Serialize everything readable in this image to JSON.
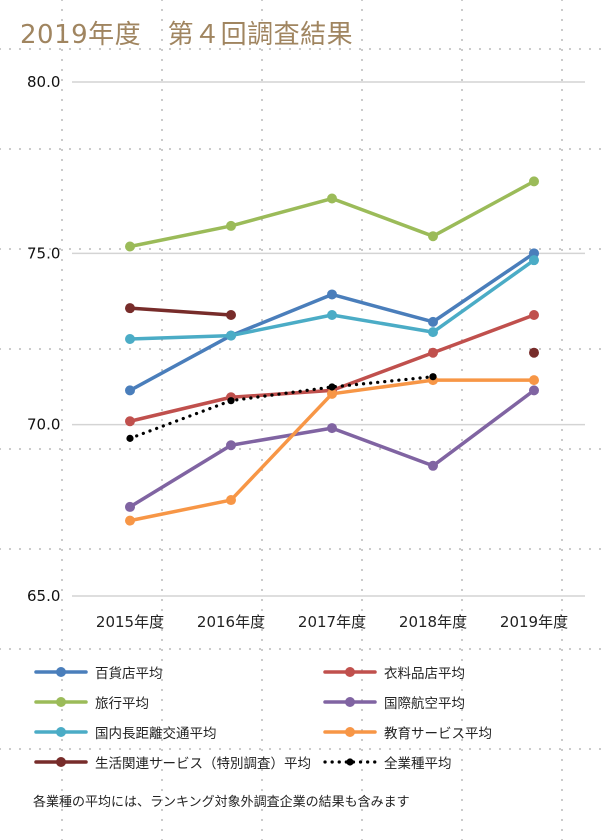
{
  "title": "2019年度　第４回調査結果",
  "footnote": "各業種の平均には、ランキング対象外調査企業の結果も含みます",
  "chart_data": {
    "type": "line",
    "title": "2019年度　第４回調査結果",
    "xlabel": "",
    "ylabel": "",
    "categories": [
      "2015年度",
      "2016年度",
      "2017年度",
      "2018年度",
      "2019年度"
    ],
    "ylim": [
      65.0,
      80.0
    ],
    "yticks": [
      "65.0",
      "70.0",
      "75.0",
      "80.0"
    ],
    "ytick_values": [
      65,
      70,
      75,
      80
    ],
    "grid": true,
    "legend_position": "bottom",
    "series": [
      {
        "name": "百貨店平均",
        "color": "#4a7ebb",
        "style": "solid",
        "values": [
          71.0,
          72.6,
          73.8,
          73.0,
          75.0
        ]
      },
      {
        "name": "衣料品店平均",
        "color": "#c0504d",
        "style": "solid",
        "values": [
          70.1,
          70.8,
          71.0,
          72.1,
          73.2
        ]
      },
      {
        "name": "旅行平均",
        "color": "#9bbb59",
        "style": "solid",
        "values": [
          75.2,
          75.8,
          76.6,
          75.5,
          77.1
        ]
      },
      {
        "name": "国際航空平均",
        "color": "#8064a2",
        "style": "solid",
        "values": [
          67.6,
          69.4,
          69.9,
          68.8,
          71.0
        ]
      },
      {
        "name": "国内長距離交通平均",
        "color": "#4bacc6",
        "style": "solid",
        "values": [
          72.5,
          72.6,
          73.2,
          72.7,
          74.8
        ]
      },
      {
        "name": "教育サービス平均",
        "color": "#f79646",
        "style": "solid",
        "values": [
          67.2,
          67.8,
          70.9,
          71.3,
          71.3
        ]
      },
      {
        "name": "生活関連サービス（特別調査）平均",
        "color": "#772c2a",
        "style": "solid",
        "values": [
          73.4,
          73.2,
          null,
          null,
          72.1
        ]
      },
      {
        "name": "全業種平均",
        "color": "#000000",
        "style": "dotted",
        "values": [
          69.6,
          70.7,
          71.1,
          71.4,
          null
        ]
      }
    ]
  }
}
